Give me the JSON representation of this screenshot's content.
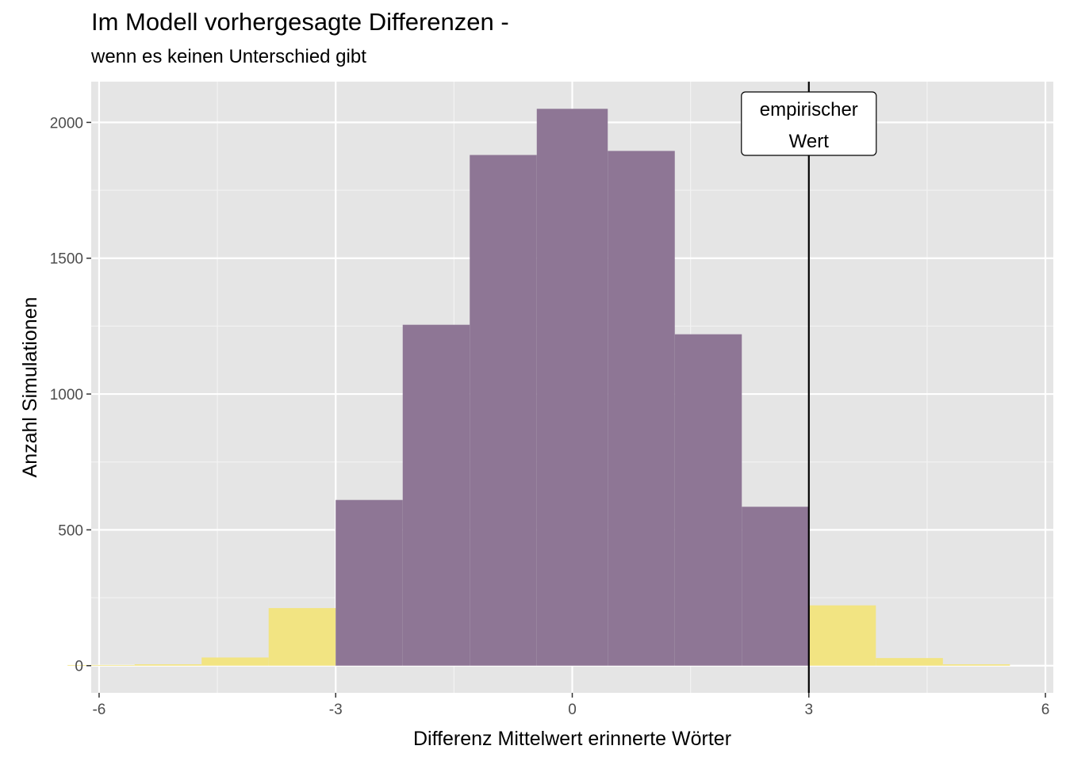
{
  "chart_data": {
    "type": "bar",
    "title": "Im Modell vorhergesagte Differenzen -",
    "subtitle": "wenn es keinen Unterschied gibt",
    "xlabel": "Differenz Mittelwert erinnerte Wörter",
    "ylabel": "Anzahl Simulationen",
    "xlim": [
      -6.1,
      6.1
    ],
    "ylim": [
      -100,
      2150
    ],
    "xticks": [
      -6,
      -3,
      0,
      3,
      6
    ],
    "xtick_labels": [
      "-6",
      "-3",
      "0",
      "3",
      "6"
    ],
    "yticks": [
      0,
      500,
      1000,
      1500,
      2000
    ],
    "ytick_labels": [
      "0",
      "500",
      "1000",
      "1500",
      "2000"
    ],
    "grid": true,
    "bins": [
      {
        "x0": -6.4,
        "x1": -5.55,
        "count": 0,
        "fill": "yellow"
      },
      {
        "x0": -5.55,
        "x1": -4.7,
        "count": 5,
        "fill": "yellow"
      },
      {
        "x0": -4.7,
        "x1": -3.85,
        "count": 30,
        "fill": "yellow"
      },
      {
        "x0": -3.85,
        "x1": -3.0,
        "count": 212,
        "fill": "yellow"
      },
      {
        "x0": -3.0,
        "x1": -2.15,
        "count": 610,
        "fill": "purple"
      },
      {
        "x0": -2.15,
        "x1": -1.3,
        "count": 1255,
        "fill": "purple"
      },
      {
        "x0": -1.3,
        "x1": -0.45,
        "count": 1880,
        "fill": "purple"
      },
      {
        "x0": -0.45,
        "x1": 0.45,
        "count": 2050,
        "fill": "purple"
      },
      {
        "x0": 0.45,
        "x1": 1.3,
        "count": 1895,
        "fill": "purple"
      },
      {
        "x0": 1.3,
        "x1": 2.15,
        "count": 1220,
        "fill": "purple"
      },
      {
        "x0": 2.15,
        "x1": 3.0,
        "count": 585,
        "fill": "purple"
      },
      {
        "x0": 3.0,
        "x1": 3.85,
        "count": 222,
        "fill": "yellow"
      },
      {
        "x0": 3.85,
        "x1": 4.7,
        "count": 28,
        "fill": "yellow"
      },
      {
        "x0": 4.7,
        "x1": 5.55,
        "count": 5,
        "fill": "yellow"
      }
    ],
    "reference_line": {
      "x": 3.0,
      "label_line1": "empirischer",
      "label_line2": "Wert"
    },
    "colors": {
      "purple": "#8e7695",
      "yellow": "#f2e482",
      "panel": "#e5e5e5",
      "grid_major": "#ffffff",
      "grid_minor": "#f2f2f2",
      "reference_line": "#000000"
    }
  }
}
